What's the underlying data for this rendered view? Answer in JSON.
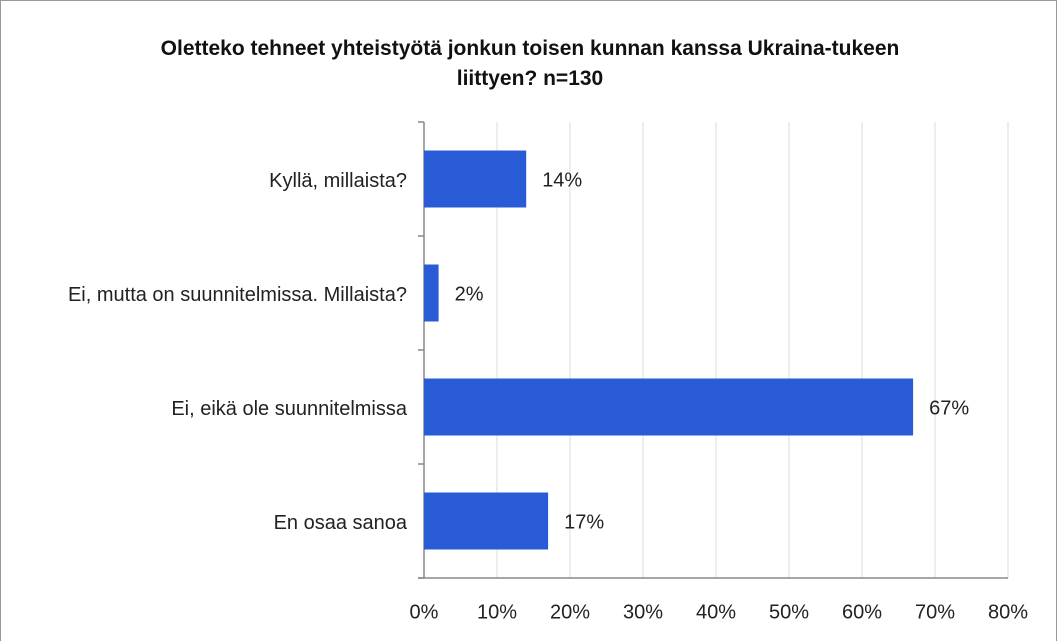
{
  "chart_data": {
    "type": "bar",
    "orientation": "horizontal",
    "title": "Oletteko tehneet yhteistyötä jonkun toisen kunnan kanssa Ukraina-tukeen liittyen? n=130",
    "categories": [
      "Kyllä, millaista?",
      "Ei, mutta on suunnitelmissa. Millaista?",
      "Ei, eikä ole suunnitelmissa",
      "En osaa sanoa"
    ],
    "values": [
      14,
      2,
      67,
      17
    ],
    "value_labels": [
      "14%",
      "2%",
      "67%",
      "17%"
    ],
    "color": "#2a5bd7",
    "xlim": [
      0,
      80
    ],
    "xticks": [
      {
        "value": 0,
        "label": "0%"
      },
      {
        "value": 10,
        "label": "10%"
      },
      {
        "value": 20,
        "label": "20%"
      },
      {
        "value": 30,
        "label": "30%"
      },
      {
        "value": 40,
        "label": "40%"
      },
      {
        "value": 50,
        "label": "50%"
      },
      {
        "value": 60,
        "label": "60%"
      },
      {
        "value": 70,
        "label": "70%"
      },
      {
        "value": 80,
        "label": "80%"
      }
    ],
    "grid": true
  }
}
